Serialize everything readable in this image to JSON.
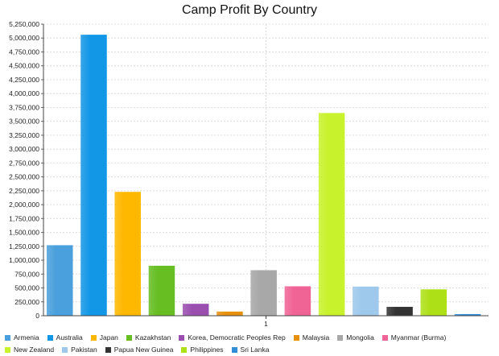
{
  "chart_data": {
    "type": "bar",
    "title": "Camp Profit By Country",
    "xlabel": "",
    "ylabel": "",
    "categories": [
      "1"
    ],
    "ylim": [
      0,
      5250000
    ],
    "ytick_step": 250000,
    "grid": true,
    "legend_position": "bottom",
    "series": [
      {
        "name": "Armenia",
        "values": [
          1270000
        ],
        "color": "#4aa0dc"
      },
      {
        "name": "Australia",
        "values": [
          5060000
        ],
        "color": "#1296e6"
      },
      {
        "name": "Japan",
        "values": [
          2230000
        ],
        "color": "#ffb800"
      },
      {
        "name": "Kazakhstan",
        "values": [
          900000
        ],
        "color": "#66be22"
      },
      {
        "name": "Korea, Democratic Peoples Rep",
        "values": [
          215000
        ],
        "color": "#9a4fb0"
      },
      {
        "name": "Malaysia",
        "values": [
          75000
        ],
        "color": "#e8900c"
      },
      {
        "name": "Mongolia",
        "values": [
          820000
        ],
        "color": "#a8a8a8"
      },
      {
        "name": "Myanmar (Burma)",
        "values": [
          530000
        ],
        "color": "#f06495"
      },
      {
        "name": "New Zealand",
        "values": [
          3650000
        ],
        "color": "#c8f22c"
      },
      {
        "name": "Pakistan",
        "values": [
          525000
        ],
        "color": "#9ec8ec"
      },
      {
        "name": "Papua New Guinea",
        "values": [
          160000
        ],
        "color": "#333333"
      },
      {
        "name": "Philippines",
        "values": [
          475000
        ],
        "color": "#aee018"
      },
      {
        "name": "Sri Lanka",
        "values": [
          30000
        ],
        "color": "#2f8ed6"
      }
    ]
  }
}
